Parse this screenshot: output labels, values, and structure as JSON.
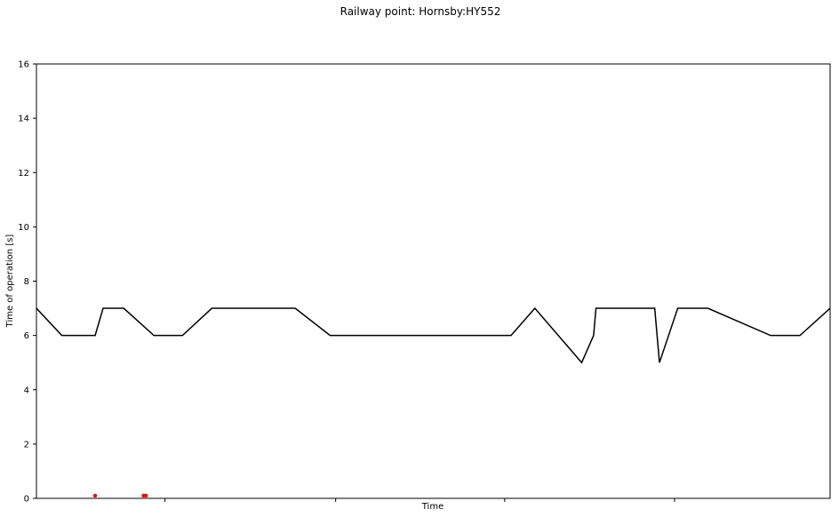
{
  "chart_data": {
    "type": "line",
    "title": "Railway point: Hornsby:HY552",
    "xlabel": "Time",
    "ylabel": "Time of operation [s]",
    "ylim": [
      0,
      16
    ],
    "y_ticks": [
      0,
      2,
      4,
      6,
      8,
      10,
      12,
      14,
      16
    ],
    "x_ticks_labeled": false,
    "x_tick_positions": [
      0.162,
      0.377,
      0.59,
      0.804
    ],
    "grid": false,
    "legend": "none",
    "series": [
      {
        "color": "#000000",
        "points": [
          [
            0.0,
            7
          ],
          [
            0.032,
            6
          ],
          [
            0.074,
            6
          ],
          [
            0.084,
            7
          ],
          [
            0.11,
            7
          ],
          [
            0.148,
            6
          ],
          [
            0.184,
            6
          ],
          [
            0.221,
            7
          ],
          [
            0.326,
            7
          ],
          [
            0.37,
            6
          ],
          [
            0.598,
            6
          ],
          [
            0.628,
            7
          ],
          [
            0.687,
            5
          ],
          [
            0.702,
            6
          ],
          [
            0.705,
            7
          ],
          [
            0.779,
            7
          ],
          [
            0.785,
            5
          ],
          [
            0.808,
            7
          ],
          [
            0.846,
            7
          ],
          [
            0.925,
            6
          ],
          [
            0.962,
            6
          ],
          [
            1.0,
            7
          ]
        ]
      }
    ],
    "markers": {
      "color": "#ff0000",
      "points": [
        [
          0.074,
          0.1
        ],
        [
          0.135,
          0.1
        ],
        [
          0.138,
          0.1
        ]
      ]
    }
  }
}
